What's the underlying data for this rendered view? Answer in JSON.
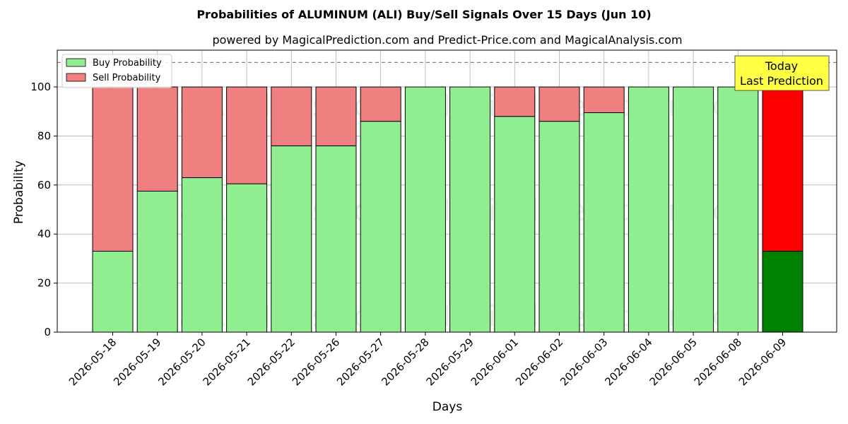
{
  "chart_data": {
    "type": "bar",
    "stacked": true,
    "title": "Probabilities of ALUMINUM (ALI) Buy/Sell Signals Over 15 Days (Jun 10)",
    "subtitle": "powered by MagicalPrediction.com and Predict-Price.com and MagicalAnalysis.com",
    "xlabel": "Days",
    "ylabel": "Probability",
    "ylim": [
      0,
      115
    ],
    "yticks": [
      0,
      20,
      40,
      60,
      80,
      100
    ],
    "grid": true,
    "legend_position": "top-left",
    "reference_line": 110,
    "categories": [
      "2026-05-18",
      "2026-05-19",
      "2026-05-20",
      "2026-05-21",
      "2026-05-22",
      "2026-05-26",
      "2026-05-27",
      "2026-05-28",
      "2026-05-29",
      "2026-06-01",
      "2026-06-02",
      "2026-06-03",
      "2026-06-04",
      "2026-06-05",
      "2026-06-08",
      "2026-06-09"
    ],
    "series": [
      {
        "name": "Buy Probability",
        "color": "#90ee90",
        "values": [
          33,
          57.5,
          63,
          60.5,
          76,
          76,
          86,
          100,
          100,
          88,
          86,
          89.5,
          100,
          100,
          100,
          33
        ]
      },
      {
        "name": "Sell Probability",
        "color": "#f08080",
        "values": [
          67,
          42.5,
          37,
          39.5,
          24,
          24,
          14,
          0,
          0,
          12,
          14,
          10.5,
          0,
          0,
          0,
          67
        ]
      }
    ],
    "highlight": {
      "index": 15,
      "buy_color": "#008000",
      "sell_color": "#ff0000"
    },
    "annotation": {
      "lines": [
        "Today",
        "Last Prediction"
      ],
      "bg": "#ffff44"
    },
    "watermarks": [
      "MagicalAnalysis.com",
      "MagicalPrediction.com"
    ]
  }
}
